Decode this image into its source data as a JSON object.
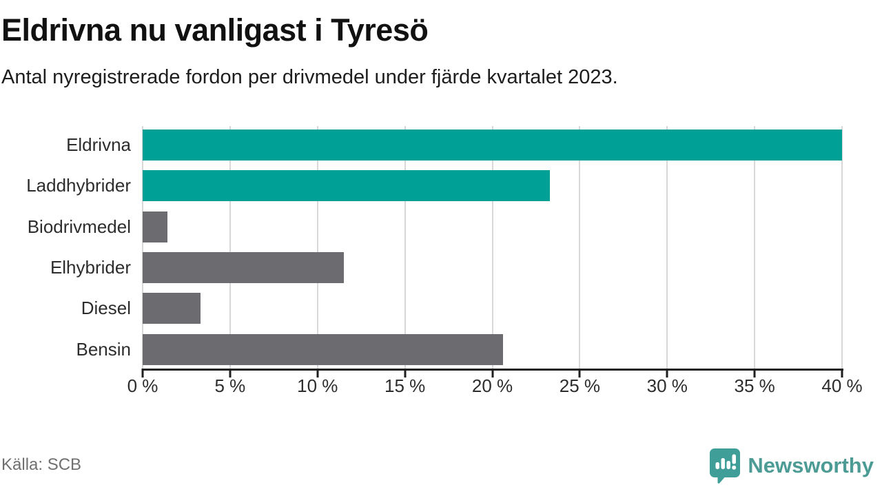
{
  "header": {
    "title": "Eldrivna nu vanligast i Tyresö",
    "subtitle": "Antal nyregistrerade fordon per drivmedel under fjärde kvartalet 2023."
  },
  "chart_data": {
    "type": "bar",
    "orientation": "horizontal",
    "title": "Eldrivna nu vanligast i Tyresö",
    "subtitle": "Antal nyregistrerade fordon per drivmedel under fjärde kvartalet 2023.",
    "categories": [
      "Eldrivna",
      "Laddhybrider",
      "Biodrivmedel",
      "Elhybrider",
      "Diesel",
      "Bensin"
    ],
    "values": [
      40.0,
      23.3,
      1.4,
      11.5,
      3.3,
      20.6
    ],
    "unit": "%",
    "xlim": [
      0,
      40
    ],
    "x_ticks": [
      0,
      5,
      10,
      15,
      20,
      25,
      30,
      35,
      40
    ],
    "x_tick_labels": [
      "0 %",
      "5 %",
      "10 %",
      "15 %",
      "20 %",
      "25 %",
      "30 %",
      "35 %",
      "40 %"
    ],
    "bar_colors": [
      "#00a096",
      "#00a096",
      "#6c6c70",
      "#6c6c70",
      "#6c6c70",
      "#6c6c70"
    ],
    "highlight_color": "#00a096",
    "default_color": "#6c6c70",
    "grid": true,
    "gridline_color": "#d8d8d8",
    "axis_color": "#1e1e1e",
    "legend": "none"
  },
  "footer": {
    "source": "Källa: SCB",
    "brand": "Newsworthy"
  },
  "colors": {
    "teal": "#00a096",
    "gray": "#6c6c70",
    "brand_teal": "#4d9b95",
    "logo_teal": "#3f9e97"
  }
}
